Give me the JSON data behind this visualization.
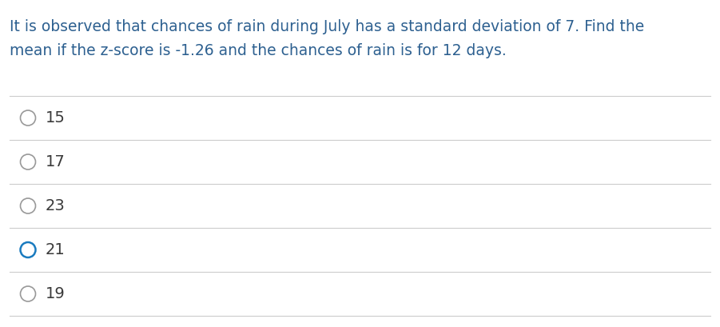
{
  "question_line1": "It is observed that chances of rain during July has a standard deviation of 7. Find the",
  "question_line2": "mean if the z-score is -1.26 and the chances of rain is for 12 days.",
  "options": [
    "15",
    "17",
    "23",
    "21",
    "19"
  ],
  "selected_index": 3,
  "background_color": "#ffffff",
  "text_color": "#2d6090",
  "option_text_color": "#3a3a3a",
  "circle_default_color": "#999999",
  "circle_selected_color": "#1a7bbf",
  "line_color": "#cccccc",
  "question_fontsize": 13.5,
  "option_fontsize": 14.0,
  "fig_width": 9.01,
  "fig_height": 4.09,
  "dpi": 100
}
